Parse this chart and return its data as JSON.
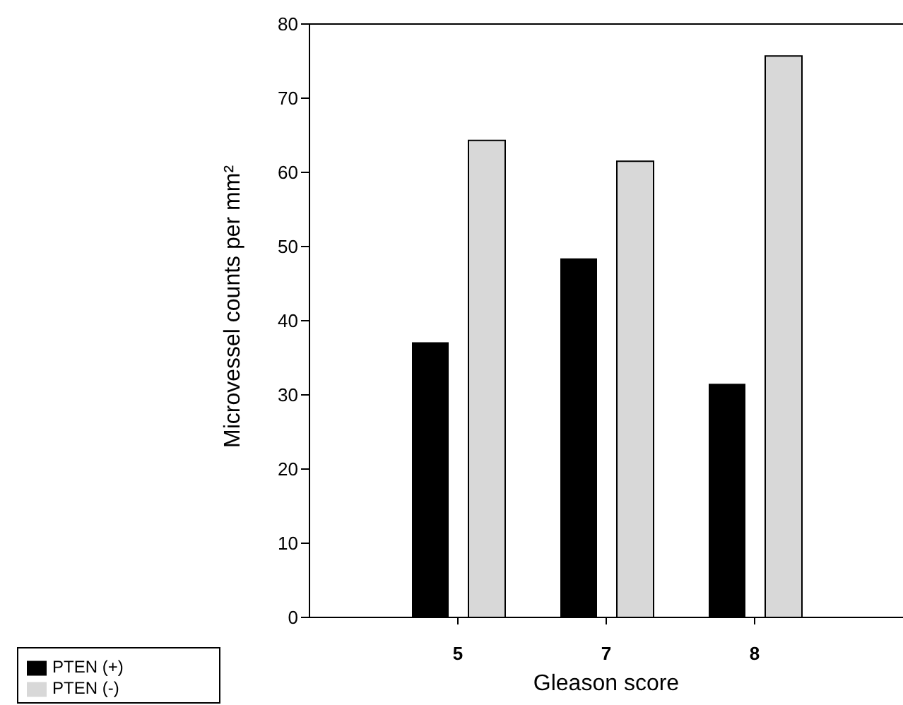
{
  "chart_data": {
    "type": "bar",
    "xlabel": "Gleason score",
    "ylabel": "Microvessel counts per mm²",
    "categories": [
      null,
      "5",
      "7",
      "8",
      null
    ],
    "series": [
      {
        "name": "PTEN (+)",
        "color": "#000000",
        "values": [
          null,
          37.1,
          48.4,
          31.5,
          null
        ]
      },
      {
        "name": "PTEN (-)",
        "color": "#d8d8d8",
        "values": [
          null,
          64.3,
          61.5,
          75.7,
          null
        ]
      }
    ],
    "ylim": [
      0,
      80
    ],
    "yticks": [
      0,
      10,
      20,
      30,
      40,
      50,
      60,
      70,
      80
    ],
    "grid": false,
    "legend": "bottom left"
  }
}
